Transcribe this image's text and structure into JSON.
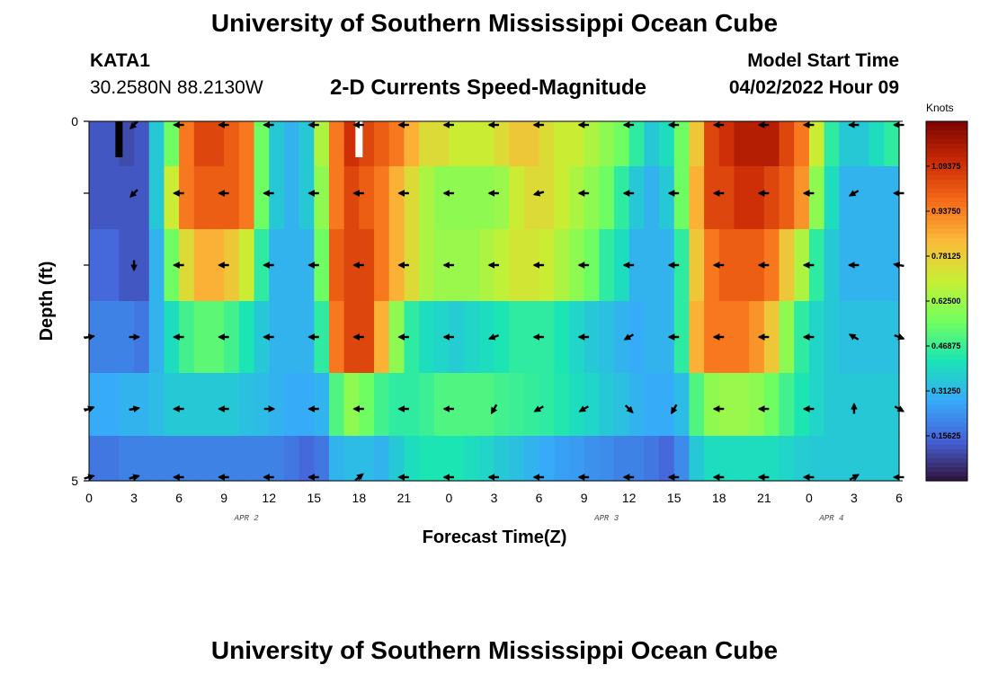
{
  "page": {
    "title": "University of Southern Mississippi Ocean Cube",
    "station": "KATA1",
    "coords": "30.2580N  88.2130W",
    "subtitle": "2-D Currents Speed-Magnitude",
    "model_label": "Model Start Time",
    "model_time": "04/02/2022 Hour 09",
    "footer_title": "University of Southern Mississippi Ocean Cube"
  },
  "colors": {
    "colormap": [
      "#30123b",
      "#4662d7",
      "#36aaf9",
      "#1ae4b6",
      "#72fe5e",
      "#c8ef34",
      "#faba39",
      "#f66b19",
      "#ca2a04",
      "#7a0403"
    ],
    "missing_low": "#000000",
    "missing_high": "#ffffff",
    "arrow": "#000000"
  },
  "chart_data": {
    "type": "heatmap",
    "title": "2-D Currents Speed-Magnitude",
    "xlabel": "Forecast Time(Z)",
    "ylabel": "Depth (ft)",
    "x_tick_labels": [
      "0",
      "3",
      "6",
      "9",
      "12",
      "15",
      "18",
      "21",
      "0",
      "3",
      "6",
      "9",
      "12",
      "15",
      "18",
      "21",
      "0",
      "3",
      "6"
    ],
    "date_labels": [
      {
        "text": "APR 2",
        "at_tick": 3.5
      },
      {
        "text": "APR 3",
        "at_tick": 11.5
      },
      {
        "text": "APR 4",
        "at_tick": 16.5
      }
    ],
    "y_tick_labels": [
      {
        "depth": 0,
        "label": "0"
      },
      {
        "depth": 1,
        "label": ""
      },
      {
        "depth": 2,
        "label": ""
      },
      {
        "depth": 3,
        "label": ""
      },
      {
        "depth": 4,
        "label": ""
      },
      {
        "depth": 5,
        "label": "5"
      }
    ],
    "ylim": [
      0,
      5
    ],
    "xlim": [
      0,
      54
    ],
    "colorbar": {
      "unit": "Knots",
      "range": [
        0,
        1.25
      ],
      "ticks": [
        "0.15625",
        "0.3125",
        "0.46875",
        "0.625",
        "0.78125",
        "0.9375",
        "1.09375"
      ],
      "tick_labels": [
        "0.15625",
        "0.31250",
        "0.46875",
        "0.62500",
        "0.78125",
        "0.93750",
        "1.09375"
      ]
    },
    "missing_markers": [
      {
        "hour": 2,
        "depth_from": 0,
        "depth_to": 0.5,
        "kind": "low"
      },
      {
        "hour": 18,
        "depth_from": 0,
        "depth_to": 0.5,
        "kind": "high"
      }
    ],
    "row_depths": [
      0.25,
      1,
      2,
      3,
      4,
      4.75
    ],
    "speed_knots": [
      [
        0.12,
        0.12,
        0.1,
        0.12,
        0.35,
        0.55,
        0.95,
        1.05,
        1.05,
        1.0,
        0.95,
        0.55,
        0.35,
        0.3,
        0.35,
        0.65,
        0.95,
        1.1,
        1.05,
        1.0,
        0.95,
        0.85,
        0.75,
        0.75,
        0.7,
        0.7,
        0.7,
        0.75,
        0.8,
        0.8,
        0.75,
        0.7,
        0.7,
        0.65,
        0.6,
        0.55,
        0.45,
        0.35,
        0.4,
        0.55,
        0.8,
        1.05,
        1.1,
        1.15,
        1.15,
        1.15,
        1.05,
        0.95,
        0.7,
        0.45,
        0.35,
        0.35,
        0.4,
        0.45
      ],
      [
        0.12,
        0.12,
        0.12,
        0.12,
        0.35,
        0.7,
        0.95,
        1.0,
        1.0,
        1.0,
        0.95,
        0.55,
        0.35,
        0.3,
        0.35,
        0.6,
        0.95,
        1.05,
        1.0,
        0.95,
        0.85,
        0.75,
        0.65,
        0.6,
        0.6,
        0.6,
        0.6,
        0.62,
        0.7,
        0.75,
        0.75,
        0.7,
        0.65,
        0.6,
        0.55,
        0.45,
        0.35,
        0.3,
        0.35,
        0.55,
        0.85,
        1.05,
        1.05,
        1.1,
        1.1,
        1.05,
        1.0,
        0.9,
        0.6,
        0.4,
        0.3,
        0.3,
        0.3,
        0.3
      ],
      [
        0.15,
        0.15,
        0.12,
        0.12,
        0.3,
        0.55,
        0.75,
        0.85,
        0.85,
        0.8,
        0.7,
        0.45,
        0.3,
        0.3,
        0.3,
        0.55,
        1.0,
        1.05,
        1.05,
        0.95,
        0.85,
        0.75,
        0.65,
        0.62,
        0.62,
        0.62,
        0.65,
        0.68,
        0.72,
        0.72,
        0.7,
        0.65,
        0.6,
        0.55,
        0.45,
        0.4,
        0.3,
        0.3,
        0.3,
        0.45,
        0.8,
        0.95,
        1.0,
        1.0,
        1.0,
        0.95,
        0.8,
        0.65,
        0.45,
        0.35,
        0.3,
        0.3,
        0.3,
        0.3
      ],
      [
        0.2,
        0.2,
        0.2,
        0.18,
        0.3,
        0.4,
        0.48,
        0.52,
        0.52,
        0.48,
        0.42,
        0.35,
        0.3,
        0.3,
        0.3,
        0.45,
        0.95,
        1.05,
        1.05,
        0.85,
        0.6,
        0.45,
        0.4,
        0.38,
        0.36,
        0.38,
        0.4,
        0.42,
        0.45,
        0.45,
        0.45,
        0.42,
        0.38,
        0.35,
        0.33,
        0.3,
        0.28,
        0.3,
        0.3,
        0.45,
        0.85,
        0.95,
        0.95,
        0.95,
        0.9,
        0.8,
        0.6,
        0.45,
        0.38,
        0.35,
        0.33,
        0.33,
        0.33,
        0.33
      ],
      [
        0.28,
        0.28,
        0.3,
        0.3,
        0.32,
        0.35,
        0.35,
        0.35,
        0.35,
        0.35,
        0.33,
        0.32,
        0.3,
        0.28,
        0.28,
        0.3,
        0.5,
        0.6,
        0.55,
        0.48,
        0.45,
        0.45,
        0.47,
        0.5,
        0.5,
        0.5,
        0.5,
        0.48,
        0.47,
        0.46,
        0.45,
        0.43,
        0.4,
        0.38,
        0.35,
        0.33,
        0.3,
        0.28,
        0.28,
        0.32,
        0.5,
        0.6,
        0.62,
        0.62,
        0.6,
        0.55,
        0.48,
        0.42,
        0.38,
        0.35,
        0.35,
        0.35,
        0.35,
        0.35
      ],
      [
        0.18,
        0.18,
        0.2,
        0.2,
        0.2,
        0.2,
        0.2,
        0.2,
        0.2,
        0.2,
        0.2,
        0.2,
        0.2,
        0.18,
        0.15,
        0.18,
        0.3,
        0.32,
        0.32,
        0.3,
        0.35,
        0.4,
        0.42,
        0.42,
        0.42,
        0.4,
        0.38,
        0.35,
        0.33,
        0.3,
        0.28,
        0.26,
        0.25,
        0.23,
        0.22,
        0.2,
        0.2,
        0.18,
        0.15,
        0.22,
        0.35,
        0.4,
        0.4,
        0.4,
        0.4,
        0.4,
        0.38,
        0.36,
        0.35,
        0.35,
        0.35,
        0.35,
        0.35,
        0.35
      ]
    ],
    "arrows": {
      "times_hours": [
        0,
        3,
        6,
        9,
        12,
        15,
        18,
        21,
        24,
        27,
        30,
        33,
        36,
        39,
        42,
        45,
        48,
        51,
        54
      ],
      "rows": [
        {
          "depth": 0.05,
          "dirs": [
            null,
            225,
            180,
            180,
            180,
            180,
            180,
            180,
            180,
            180,
            180,
            180,
            180,
            180,
            180,
            180,
            180,
            180,
            180
          ]
        },
        {
          "depth": 1,
          "dirs": [
            null,
            225,
            180,
            180,
            180,
            180,
            180,
            180,
            180,
            180,
            195,
            180,
            180,
            180,
            180,
            180,
            180,
            210,
            180
          ]
        },
        {
          "depth": 2,
          "dirs": [
            null,
            270,
            180,
            180,
            180,
            180,
            180,
            180,
            180,
            180,
            180,
            180,
            180,
            180,
            180,
            180,
            180,
            180,
            170
          ]
        },
        {
          "depth": 3,
          "dirs": [
            10,
            0,
            180,
            180,
            180,
            180,
            180,
            180,
            180,
            200,
            180,
            180,
            210,
            180,
            180,
            180,
            180,
            150,
            340
          ]
        },
        {
          "depth": 4,
          "dirs": [
            20,
            10,
            180,
            180,
            0,
            180,
            180,
            180,
            180,
            240,
            210,
            210,
            315,
            240,
            180,
            180,
            180,
            90,
            330
          ]
        },
        {
          "depth": 4.95,
          "dirs": [
            15,
            15,
            180,
            180,
            180,
            180,
            40,
            180,
            180,
            180,
            180,
            180,
            180,
            180,
            180,
            180,
            180,
            30,
            180
          ]
        }
      ]
    }
  }
}
